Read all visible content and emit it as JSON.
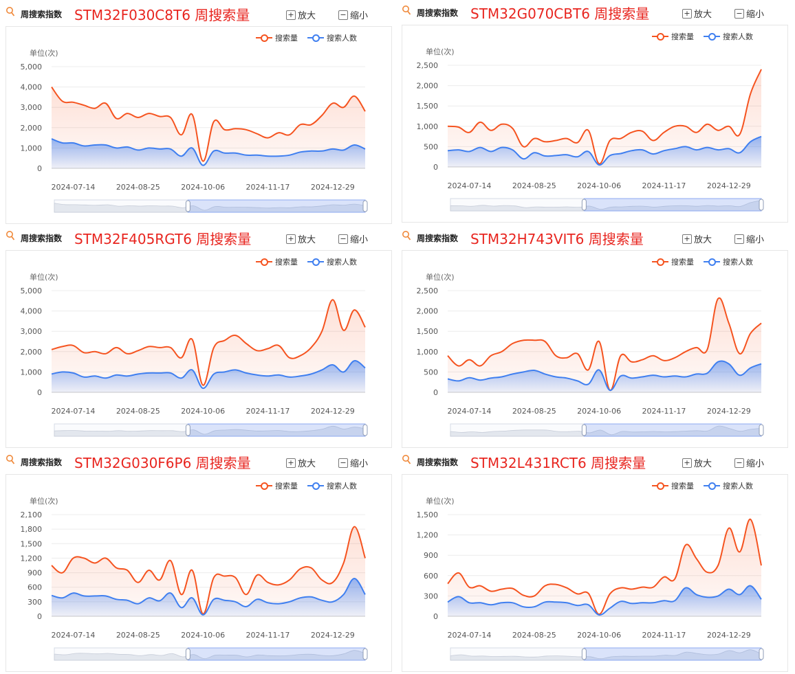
{
  "header_label": "周搜索指数",
  "zoom_in_label": "放大",
  "zoom_out_label": "缩小",
  "legend": {
    "search": "搜索量",
    "people": "搜索人数"
  },
  "unit_label": "单位(次)",
  "colors": {
    "search": "#f5531f",
    "people": "#3f7ff0",
    "title": "#e8251f"
  },
  "x_tick_labels": [
    "2024-07-14",
    "2024-08-25",
    "2024-10-06",
    "2024-11-17",
    "2024-12-29"
  ],
  "chart_data": [
    {
      "type": "area",
      "title": "STM32F030C8T6 周搜索量",
      "ylabel": "单位(次)",
      "ylim": [
        0,
        5000
      ],
      "yticks": [
        0,
        1000,
        2000,
        3000,
        4000,
        5000
      ],
      "ytick_labels": [
        "0",
        "1,000",
        "2,000",
        "3,000",
        "4,000",
        "5,000"
      ],
      "x": [
        "2024-06-30",
        "2024-07-07",
        "2024-07-14",
        "2024-07-21",
        "2024-07-28",
        "2024-08-04",
        "2024-08-11",
        "2024-08-18",
        "2024-08-25",
        "2024-09-01",
        "2024-09-08",
        "2024-09-15",
        "2024-09-22",
        "2024-09-29",
        "2024-10-06",
        "2024-10-13",
        "2024-10-20",
        "2024-10-27",
        "2024-11-03",
        "2024-11-10",
        "2024-11-17",
        "2024-11-24",
        "2024-12-01",
        "2024-12-08",
        "2024-12-15",
        "2024-12-22",
        "2024-12-29",
        "2025-01-05",
        "2025-01-12",
        "2025-01-19"
      ],
      "series": [
        {
          "name": "搜索量",
          "values": [
            4000,
            3300,
            3250,
            3100,
            2950,
            3200,
            2450,
            2700,
            2500,
            2700,
            2550,
            2500,
            1650,
            2650,
            350,
            2300,
            1900,
            1950,
            1900,
            1700,
            1500,
            1750,
            1650,
            2150,
            2150,
            2600,
            3200,
            3000,
            3550,
            2800
          ]
        },
        {
          "name": "搜索人数",
          "values": [
            1450,
            1250,
            1250,
            1100,
            1150,
            1150,
            1000,
            1050,
            900,
            1000,
            950,
            950,
            600,
            1000,
            150,
            850,
            750,
            750,
            650,
            650,
            600,
            600,
            650,
            800,
            850,
            850,
            950,
            900,
            1150,
            950
          ]
        }
      ],
      "slider_range": [
        0.43,
        1.0
      ]
    },
    {
      "type": "area",
      "title": "STM32G070CBT6 周搜索量",
      "ylabel": "单位(次)",
      "ylim": [
        0,
        2500
      ],
      "yticks": [
        0,
        500,
        1000,
        1500,
        2000,
        2500
      ],
      "ytick_labels": [
        "0",
        "500",
        "1,000",
        "1,500",
        "2,000",
        "2,500"
      ],
      "x": [
        "2024-06-30",
        "2024-07-07",
        "2024-07-14",
        "2024-07-21",
        "2024-07-28",
        "2024-08-04",
        "2024-08-11",
        "2024-08-18",
        "2024-08-25",
        "2024-09-01",
        "2024-09-08",
        "2024-09-15",
        "2024-09-22",
        "2024-09-29",
        "2024-10-06",
        "2024-10-13",
        "2024-10-20",
        "2024-10-27",
        "2024-11-03",
        "2024-11-10",
        "2024-11-17",
        "2024-11-24",
        "2024-12-01",
        "2024-12-08",
        "2024-12-15",
        "2024-12-22",
        "2024-12-29",
        "2025-01-05",
        "2025-01-12",
        "2025-01-19"
      ],
      "series": [
        {
          "name": "搜索量",
          "values": [
            1000,
            980,
            850,
            1100,
            900,
            1050,
            950,
            500,
            700,
            620,
            650,
            700,
            600,
            900,
            80,
            650,
            700,
            850,
            880,
            650,
            850,
            1000,
            1000,
            850,
            1050,
            900,
            1000,
            800,
            1800,
            2400
          ]
        },
        {
          "name": "搜索人数",
          "values": [
            400,
            420,
            380,
            480,
            380,
            480,
            420,
            200,
            350,
            270,
            280,
            300,
            250,
            380,
            50,
            280,
            330,
            400,
            420,
            320,
            400,
            450,
            500,
            420,
            480,
            420,
            450,
            350,
            620,
            750
          ]
        }
      ],
      "slider_range": [
        0.43,
        1.0
      ]
    },
    {
      "type": "area",
      "title": "STM32F405RGT6 周搜索量",
      "ylabel": "单位(次)",
      "ylim": [
        0,
        5000
      ],
      "yticks": [
        0,
        1000,
        2000,
        3000,
        4000,
        5000
      ],
      "ytick_labels": [
        "0",
        "1,000",
        "2,000",
        "3,000",
        "4,000",
        "5,000"
      ],
      "x": [
        "2024-06-30",
        "2024-07-07",
        "2024-07-14",
        "2024-07-21",
        "2024-07-28",
        "2024-08-04",
        "2024-08-11",
        "2024-08-18",
        "2024-08-25",
        "2024-09-01",
        "2024-09-08",
        "2024-09-15",
        "2024-09-22",
        "2024-09-29",
        "2024-10-06",
        "2024-10-13",
        "2024-10-20",
        "2024-10-27",
        "2024-11-03",
        "2024-11-10",
        "2024-11-17",
        "2024-11-24",
        "2024-12-01",
        "2024-12-08",
        "2024-12-15",
        "2024-12-22",
        "2024-12-29",
        "2025-01-05",
        "2025-01-12",
        "2025-01-19"
      ],
      "series": [
        {
          "name": "搜索量",
          "values": [
            2100,
            2250,
            2300,
            1950,
            2000,
            1900,
            2200,
            1900,
            2050,
            2250,
            2200,
            2200,
            1700,
            2600,
            350,
            2200,
            2550,
            2800,
            2400,
            2050,
            2150,
            2300,
            1700,
            1800,
            2200,
            3000,
            4550,
            3050,
            4050,
            3200
          ]
        },
        {
          "name": "搜索人数",
          "values": [
            900,
            1000,
            950,
            750,
            800,
            700,
            850,
            800,
            900,
            950,
            950,
            950,
            700,
            1100,
            200,
            900,
            1000,
            1100,
            950,
            850,
            800,
            850,
            750,
            800,
            900,
            1100,
            1350,
            1000,
            1550,
            1200
          ]
        }
      ],
      "slider_range": [
        0.43,
        1.0
      ]
    },
    {
      "type": "area",
      "title": "STM32H743VIT6 周搜索量",
      "ylabel": "单位(次)",
      "ylim": [
        0,
        2500
      ],
      "yticks": [
        0,
        500,
        1000,
        1500,
        2000,
        2500
      ],
      "ytick_labels": [
        "0",
        "500",
        "1,000",
        "1,500",
        "2,000",
        "2,500"
      ],
      "x": [
        "2024-06-30",
        "2024-07-07",
        "2024-07-14",
        "2024-07-21",
        "2024-07-28",
        "2024-08-04",
        "2024-08-11",
        "2024-08-18",
        "2024-08-25",
        "2024-09-01",
        "2024-09-08",
        "2024-09-15",
        "2024-09-22",
        "2024-09-29",
        "2024-10-06",
        "2024-10-13",
        "2024-10-20",
        "2024-10-27",
        "2024-11-03",
        "2024-11-10",
        "2024-11-17",
        "2024-11-24",
        "2024-12-01",
        "2024-12-08",
        "2024-12-15",
        "2024-12-22",
        "2024-12-29",
        "2025-01-05",
        "2025-01-12",
        "2025-01-19"
      ],
      "series": [
        {
          "name": "搜索量",
          "values": [
            900,
            650,
            800,
            650,
            900,
            1000,
            1200,
            1280,
            1280,
            1250,
            900,
            850,
            950,
            550,
            1250,
            50,
            900,
            750,
            800,
            900,
            780,
            850,
            1000,
            1100,
            1050,
            2300,
            1700,
            950,
            1450,
            1700
          ]
        },
        {
          "name": "搜索人数",
          "values": [
            330,
            280,
            360,
            300,
            350,
            380,
            450,
            500,
            540,
            450,
            380,
            350,
            280,
            200,
            550,
            50,
            400,
            350,
            380,
            420,
            380,
            400,
            380,
            450,
            470,
            750,
            700,
            420,
            600,
            700
          ]
        }
      ],
      "slider_range": [
        0.43,
        1.0
      ]
    },
    {
      "type": "area",
      "title": "STM32G030F6P6 周搜索量",
      "ylabel": "单位(次)",
      "ylim": [
        0,
        2100
      ],
      "yticks": [
        0,
        300,
        600,
        900,
        1200,
        1500,
        1800,
        2100
      ],
      "ytick_labels": [
        "0",
        "300",
        "600",
        "900",
        "1,200",
        "1,500",
        "1,800",
        "2,100"
      ],
      "x": [
        "2024-06-30",
        "2024-07-07",
        "2024-07-14",
        "2024-07-21",
        "2024-07-28",
        "2024-08-04",
        "2024-08-11",
        "2024-08-18",
        "2024-08-25",
        "2024-09-01",
        "2024-09-08",
        "2024-09-15",
        "2024-09-22",
        "2024-09-29",
        "2024-10-06",
        "2024-10-13",
        "2024-10-20",
        "2024-10-27",
        "2024-11-03",
        "2024-11-10",
        "2024-11-17",
        "2024-11-24",
        "2024-12-01",
        "2024-12-08",
        "2024-12-15",
        "2024-12-22",
        "2024-12-29",
        "2025-01-05",
        "2025-01-12",
        "2025-01-19"
      ],
      "series": [
        {
          "name": "搜索量",
          "values": [
            1050,
            900,
            1200,
            1200,
            1100,
            1200,
            1000,
            950,
            700,
            950,
            750,
            1150,
            450,
            950,
            50,
            800,
            830,
            800,
            450,
            850,
            700,
            650,
            750,
            980,
            1000,
            750,
            700,
            1100,
            1850,
            1200
          ]
        },
        {
          "name": "搜索人数",
          "values": [
            430,
            380,
            480,
            420,
            420,
            420,
            350,
            330,
            260,
            380,
            320,
            480,
            180,
            380,
            30,
            350,
            330,
            300,
            200,
            350,
            280,
            260,
            300,
            380,
            400,
            330,
            300,
            450,
            780,
            450
          ]
        }
      ],
      "slider_range": [
        0.43,
        1.0
      ]
    },
    {
      "type": "area",
      "title": "STM32L431RCT6 周搜索量",
      "ylabel": "单位(次)",
      "ylim": [
        0,
        1500
      ],
      "yticks": [
        0,
        300,
        600,
        900,
        1200,
        1500
      ],
      "ytick_labels": [
        "0",
        "300",
        "600",
        "900",
        "1,200",
        "1,500"
      ],
      "x": [
        "2024-06-30",
        "2024-07-07",
        "2024-07-14",
        "2024-07-21",
        "2024-07-28",
        "2024-08-04",
        "2024-08-11",
        "2024-08-18",
        "2024-08-25",
        "2024-09-01",
        "2024-09-08",
        "2024-09-15",
        "2024-09-22",
        "2024-09-29",
        "2024-10-06",
        "2024-10-13",
        "2024-10-20",
        "2024-10-27",
        "2024-11-03",
        "2024-11-10",
        "2024-11-17",
        "2024-11-24",
        "2024-12-01",
        "2024-12-08",
        "2024-12-15",
        "2024-12-22",
        "2024-12-29",
        "2025-01-05",
        "2025-01-12",
        "2025-01-19"
      ],
      "series": [
        {
          "name": "搜索量",
          "values": [
            480,
            640,
            430,
            450,
            370,
            400,
            410,
            310,
            300,
            450,
            470,
            420,
            330,
            340,
            30,
            330,
            420,
            400,
            430,
            430,
            580,
            550,
            1050,
            850,
            650,
            750,
            1300,
            950,
            1430,
            750
          ]
        },
        {
          "name": "搜索人数",
          "values": [
            210,
            290,
            200,
            200,
            170,
            200,
            200,
            140,
            140,
            210,
            210,
            200,
            160,
            170,
            20,
            120,
            220,
            190,
            200,
            200,
            230,
            230,
            420,
            320,
            280,
            300,
            400,
            320,
            450,
            250
          ]
        }
      ],
      "slider_range": [
        0.43,
        1.0
      ]
    }
  ]
}
